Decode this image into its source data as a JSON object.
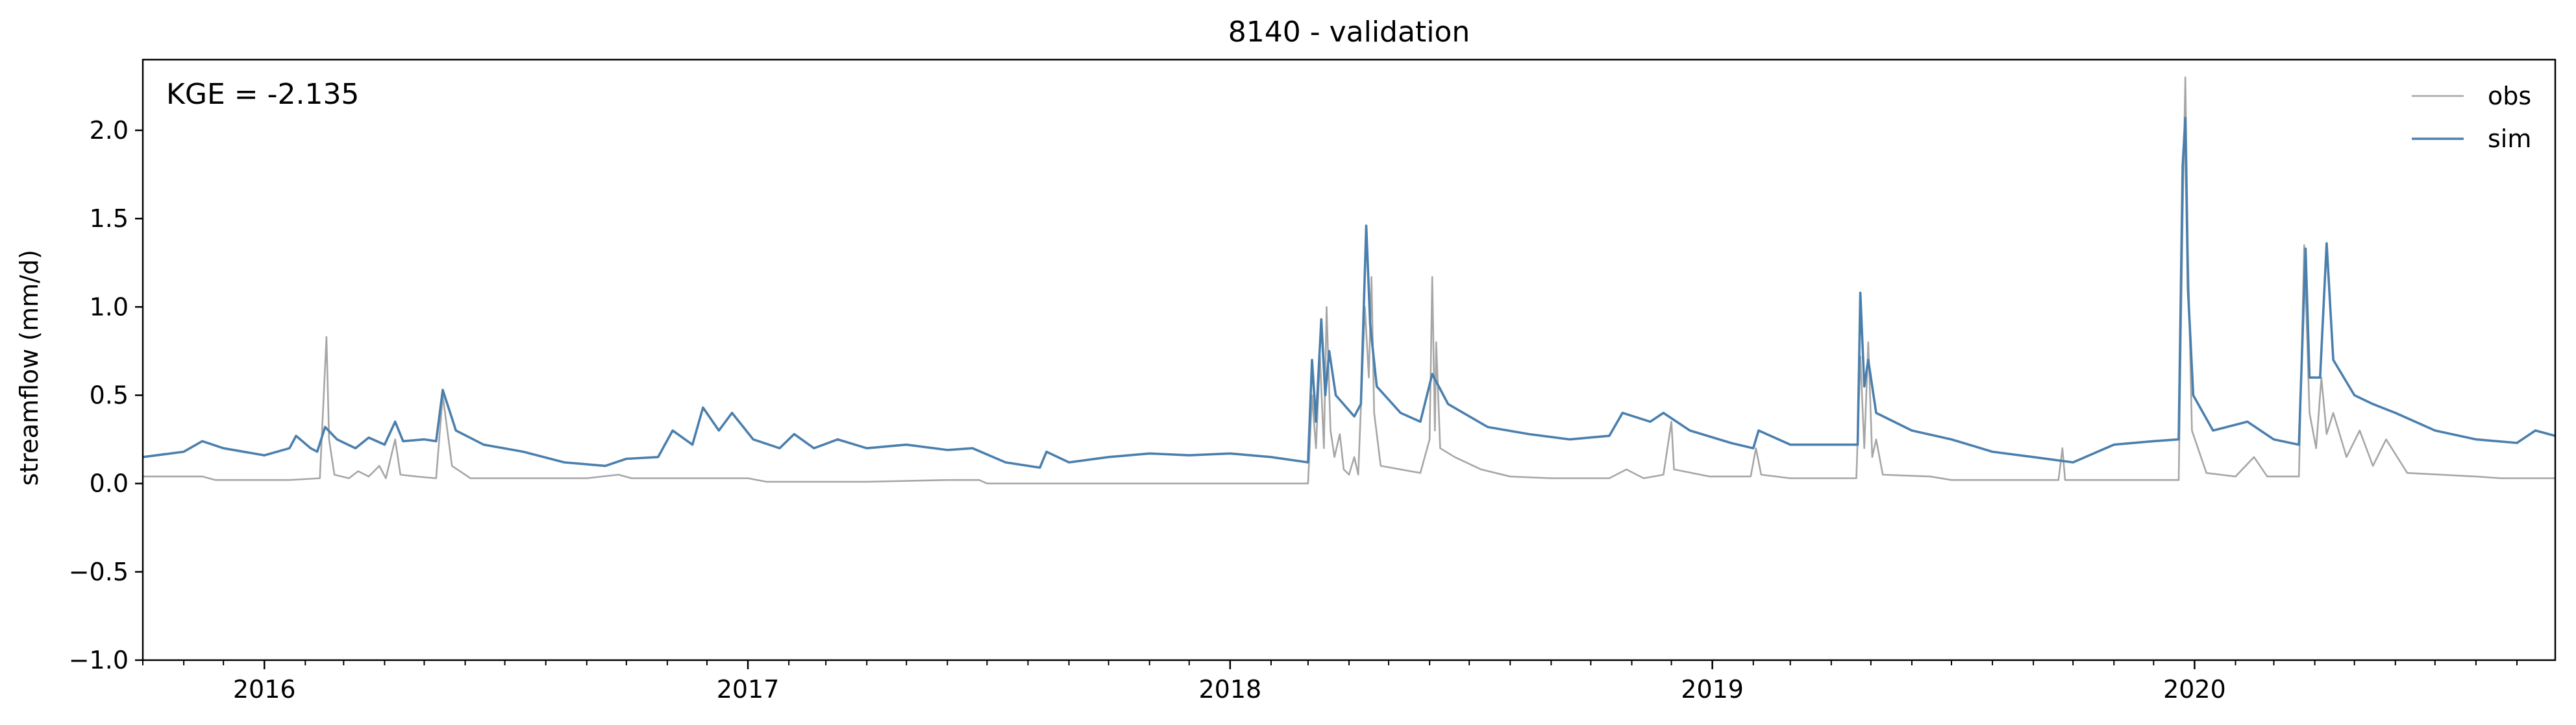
{
  "chart_data": {
    "type": "line",
    "title": "8140 - validation",
    "xlabel": "",
    "ylabel": "streamflow (mm/d)",
    "annotation": "KGE = -2.135",
    "x_range": [
      "2015-10-01",
      "2020-09-30"
    ],
    "ylim": [
      -1.0,
      2.4
    ],
    "y_ticks": [
      -1.0,
      -0.5,
      0.0,
      0.5,
      1.0,
      1.5,
      2.0
    ],
    "y_tick_labels": [
      "−1.0",
      "−0.5",
      "0.0",
      "0.5",
      "1.0",
      "1.5",
      "2.0"
    ],
    "x_ticks": [
      "2016-01-01",
      "2017-01-01",
      "2018-01-01",
      "2019-01-01",
      "2020-01-01"
    ],
    "x_tick_labels": [
      "2016",
      "2017",
      "2018",
      "2019",
      "2020"
    ],
    "grid": false,
    "legend_position": "top-right",
    "series": [
      {
        "name": "obs",
        "color": "#a6a6a6",
        "points": [
          [
            "2015-10-01",
            0.04
          ],
          [
            "2015-11-15",
            0.04
          ],
          [
            "2015-11-25",
            0.02
          ],
          [
            "2016-01-20",
            0.02
          ],
          [
            "2016-02-12",
            0.03
          ],
          [
            "2016-02-17",
            0.83
          ],
          [
            "2016-02-19",
            0.25
          ],
          [
            "2016-02-23",
            0.05
          ],
          [
            "2016-03-05",
            0.03
          ],
          [
            "2016-03-12",
            0.07
          ],
          [
            "2016-03-20",
            0.04
          ],
          [
            "2016-03-28",
            0.1
          ],
          [
            "2016-04-02",
            0.03
          ],
          [
            "2016-04-09",
            0.25
          ],
          [
            "2016-04-13",
            0.05
          ],
          [
            "2016-04-25",
            0.04
          ],
          [
            "2016-05-10",
            0.03
          ],
          [
            "2016-05-15",
            0.5
          ],
          [
            "2016-05-22",
            0.1
          ],
          [
            "2016-06-05",
            0.03
          ],
          [
            "2016-06-20",
            0.03
          ],
          [
            "2016-09-01",
            0.03
          ],
          [
            "2016-09-25",
            0.05
          ],
          [
            "2016-10-05",
            0.03
          ],
          [
            "2017-01-01",
            0.03
          ],
          [
            "2017-01-15",
            0.01
          ],
          [
            "2017-04-01",
            0.01
          ],
          [
            "2017-06-01",
            0.02
          ],
          [
            "2017-06-25",
            0.02
          ],
          [
            "2017-07-01",
            0.0
          ],
          [
            "2018-03-01",
            0.0
          ],
          [
            "2018-03-04",
            0.5
          ],
          [
            "2018-03-07",
            0.2
          ],
          [
            "2018-03-10",
            0.72
          ],
          [
            "2018-03-13",
            0.2
          ],
          [
            "2018-03-15",
            1.0
          ],
          [
            "2018-03-18",
            0.3
          ],
          [
            "2018-03-21",
            0.15
          ],
          [
            "2018-03-25",
            0.28
          ],
          [
            "2018-03-28",
            0.08
          ],
          [
            "2018-04-01",
            0.05
          ],
          [
            "2018-04-05",
            0.15
          ],
          [
            "2018-04-08",
            0.05
          ],
          [
            "2018-04-13",
            1.0
          ],
          [
            "2018-04-16",
            0.6
          ],
          [
            "2018-04-18",
            1.17
          ],
          [
            "2018-04-20",
            0.4
          ],
          [
            "2018-04-25",
            0.1
          ],
          [
            "2018-05-10",
            0.08
          ],
          [
            "2018-05-25",
            0.06
          ],
          [
            "2018-06-01",
            0.25
          ],
          [
            "2018-06-03",
            1.17
          ],
          [
            "2018-06-05",
            0.3
          ],
          [
            "2018-06-06",
            0.8
          ],
          [
            "2018-06-09",
            0.2
          ],
          [
            "2018-06-20",
            0.15
          ],
          [
            "2018-07-10",
            0.08
          ],
          [
            "2018-08-01",
            0.04
          ],
          [
            "2018-09-01",
            0.03
          ],
          [
            "2018-10-15",
            0.03
          ],
          [
            "2018-10-28",
            0.08
          ],
          [
            "2018-11-10",
            0.03
          ],
          [
            "2018-11-25",
            0.05
          ],
          [
            "2018-12-01",
            0.35
          ],
          [
            "2018-12-03",
            0.08
          ],
          [
            "2018-12-30",
            0.04
          ],
          [
            "2019-01-30",
            0.04
          ],
          [
            "2019-02-03",
            0.2
          ],
          [
            "2019-02-07",
            0.05
          ],
          [
            "2019-03-01",
            0.03
          ],
          [
            "2019-04-20",
            0.03
          ],
          [
            "2019-04-23",
            0.72
          ],
          [
            "2019-04-26",
            0.2
          ],
          [
            "2019-04-29",
            0.8
          ],
          [
            "2019-05-02",
            0.15
          ],
          [
            "2019-05-05",
            0.25
          ],
          [
            "2019-05-10",
            0.05
          ],
          [
            "2019-06-15",
            0.04
          ],
          [
            "2019-07-01",
            0.02
          ],
          [
            "2019-09-20",
            0.02
          ],
          [
            "2019-09-23",
            0.2
          ],
          [
            "2019-09-25",
            0.02
          ],
          [
            "2019-12-20",
            0.02
          ],
          [
            "2019-12-23",
            1.5
          ],
          [
            "2019-12-25",
            2.3
          ],
          [
            "2019-12-27",
            1.3
          ],
          [
            "2019-12-30",
            0.3
          ],
          [
            "2020-01-10",
            0.06
          ],
          [
            "2020-02-01",
            0.04
          ],
          [
            "2020-02-15",
            0.15
          ],
          [
            "2020-02-25",
            0.04
          ],
          [
            "2020-03-20",
            0.04
          ],
          [
            "2020-03-24",
            1.35
          ],
          [
            "2020-03-28",
            0.4
          ],
          [
            "2020-04-02",
            0.2
          ],
          [
            "2020-04-06",
            0.6
          ],
          [
            "2020-04-10",
            0.28
          ],
          [
            "2020-04-15",
            0.4
          ],
          [
            "2020-04-25",
            0.15
          ],
          [
            "2020-05-05",
            0.3
          ],
          [
            "2020-05-15",
            0.1
          ],
          [
            "2020-05-25",
            0.25
          ],
          [
            "2020-06-10",
            0.06
          ],
          [
            "2020-08-01",
            0.04
          ],
          [
            "2020-08-20",
            0.03
          ],
          [
            "2020-09-30",
            0.03
          ]
        ]
      },
      {
        "name": "sim",
        "color": "#4a7fad",
        "points": [
          [
            "2015-10-01",
            0.15
          ],
          [
            "2015-11-01",
            0.18
          ],
          [
            "2015-11-15",
            0.24
          ],
          [
            "2015-12-01",
            0.2
          ],
          [
            "2016-01-01",
            0.16
          ],
          [
            "2016-01-20",
            0.2
          ],
          [
            "2016-01-25",
            0.27
          ],
          [
            "2016-02-05",
            0.2
          ],
          [
            "2016-02-10",
            0.18
          ],
          [
            "2016-02-16",
            0.32
          ],
          [
            "2016-02-25",
            0.25
          ],
          [
            "2016-03-10",
            0.2
          ],
          [
            "2016-03-20",
            0.26
          ],
          [
            "2016-04-01",
            0.22
          ],
          [
            "2016-04-09",
            0.35
          ],
          [
            "2016-04-15",
            0.24
          ],
          [
            "2016-05-01",
            0.25
          ],
          [
            "2016-05-10",
            0.24
          ],
          [
            "2016-05-15",
            0.53
          ],
          [
            "2016-05-25",
            0.3
          ],
          [
            "2016-06-15",
            0.22
          ],
          [
            "2016-07-15",
            0.18
          ],
          [
            "2016-08-15",
            0.12
          ],
          [
            "2016-09-15",
            0.1
          ],
          [
            "2016-10-01",
            0.14
          ],
          [
            "2016-10-25",
            0.15
          ],
          [
            "2016-11-05",
            0.3
          ],
          [
            "2016-11-20",
            0.22
          ],
          [
            "2016-11-28",
            0.43
          ],
          [
            "2016-12-10",
            0.3
          ],
          [
            "2016-12-20",
            0.4
          ],
          [
            "2017-01-05",
            0.25
          ],
          [
            "2017-01-25",
            0.2
          ],
          [
            "2017-02-05",
            0.28
          ],
          [
            "2017-02-20",
            0.2
          ],
          [
            "2017-03-10",
            0.25
          ],
          [
            "2017-04-01",
            0.2
          ],
          [
            "2017-05-01",
            0.22
          ],
          [
            "2017-06-01",
            0.19
          ],
          [
            "2017-06-20",
            0.2
          ],
          [
            "2017-07-15",
            0.12
          ],
          [
            "2017-08-10",
            0.09
          ],
          [
            "2017-08-15",
            0.18
          ],
          [
            "2017-09-01",
            0.12
          ],
          [
            "2017-10-01",
            0.15
          ],
          [
            "2017-11-01",
            0.17
          ],
          [
            "2017-12-01",
            0.16
          ],
          [
            "2018-01-01",
            0.17
          ],
          [
            "2018-02-01",
            0.15
          ],
          [
            "2018-03-01",
            0.12
          ],
          [
            "2018-03-04",
            0.7
          ],
          [
            "2018-03-07",
            0.35
          ],
          [
            "2018-03-11",
            0.93
          ],
          [
            "2018-03-14",
            0.5
          ],
          [
            "2018-03-17",
            0.75
          ],
          [
            "2018-03-22",
            0.5
          ],
          [
            "2018-04-05",
            0.38
          ],
          [
            "2018-04-10",
            0.45
          ],
          [
            "2018-04-14",
            1.46
          ],
          [
            "2018-04-17",
            0.9
          ],
          [
            "2018-04-22",
            0.55
          ],
          [
            "2018-05-10",
            0.4
          ],
          [
            "2018-05-25",
            0.35
          ],
          [
            "2018-06-03",
            0.62
          ],
          [
            "2018-06-15",
            0.45
          ],
          [
            "2018-07-15",
            0.32
          ],
          [
            "2018-08-15",
            0.28
          ],
          [
            "2018-09-15",
            0.25
          ],
          [
            "2018-10-15",
            0.27
          ],
          [
            "2018-10-25",
            0.4
          ],
          [
            "2018-11-15",
            0.35
          ],
          [
            "2018-11-25",
            0.4
          ],
          [
            "2018-12-15",
            0.3
          ],
          [
            "2019-01-15",
            0.23
          ],
          [
            "2019-02-01",
            0.2
          ],
          [
            "2019-02-05",
            0.3
          ],
          [
            "2019-03-01",
            0.22
          ],
          [
            "2019-04-01",
            0.22
          ],
          [
            "2019-04-21",
            0.22
          ],
          [
            "2019-04-23",
            1.08
          ],
          [
            "2019-04-26",
            0.55
          ],
          [
            "2019-04-29",
            0.7
          ],
          [
            "2019-05-05",
            0.4
          ],
          [
            "2019-06-01",
            0.3
          ],
          [
            "2019-07-01",
            0.25
          ],
          [
            "2019-08-01",
            0.18
          ],
          [
            "2019-09-01",
            0.15
          ],
          [
            "2019-10-01",
            0.12
          ],
          [
            "2019-11-01",
            0.22
          ],
          [
            "2019-12-01",
            0.24
          ],
          [
            "2019-12-20",
            0.25
          ],
          [
            "2019-12-23",
            1.8
          ],
          [
            "2019-12-25",
            2.07
          ],
          [
            "2019-12-27",
            1.1
          ],
          [
            "2019-12-31",
            0.5
          ],
          [
            "2020-01-15",
            0.3
          ],
          [
            "2020-02-10",
            0.35
          ],
          [
            "2020-03-01",
            0.25
          ],
          [
            "2020-03-20",
            0.22
          ],
          [
            "2020-03-25",
            1.33
          ],
          [
            "2020-03-28",
            0.6
          ],
          [
            "2020-04-05",
            0.6
          ],
          [
            "2020-04-10",
            1.36
          ],
          [
            "2020-04-15",
            0.7
          ],
          [
            "2020-05-01",
            0.5
          ],
          [
            "2020-05-15",
            0.45
          ],
          [
            "2020-06-01",
            0.4
          ],
          [
            "2020-07-01",
            0.3
          ],
          [
            "2020-08-01",
            0.25
          ],
          [
            "2020-09-01",
            0.23
          ],
          [
            "2020-09-15",
            0.3
          ],
          [
            "2020-09-30",
            0.27
          ]
        ]
      }
    ]
  }
}
